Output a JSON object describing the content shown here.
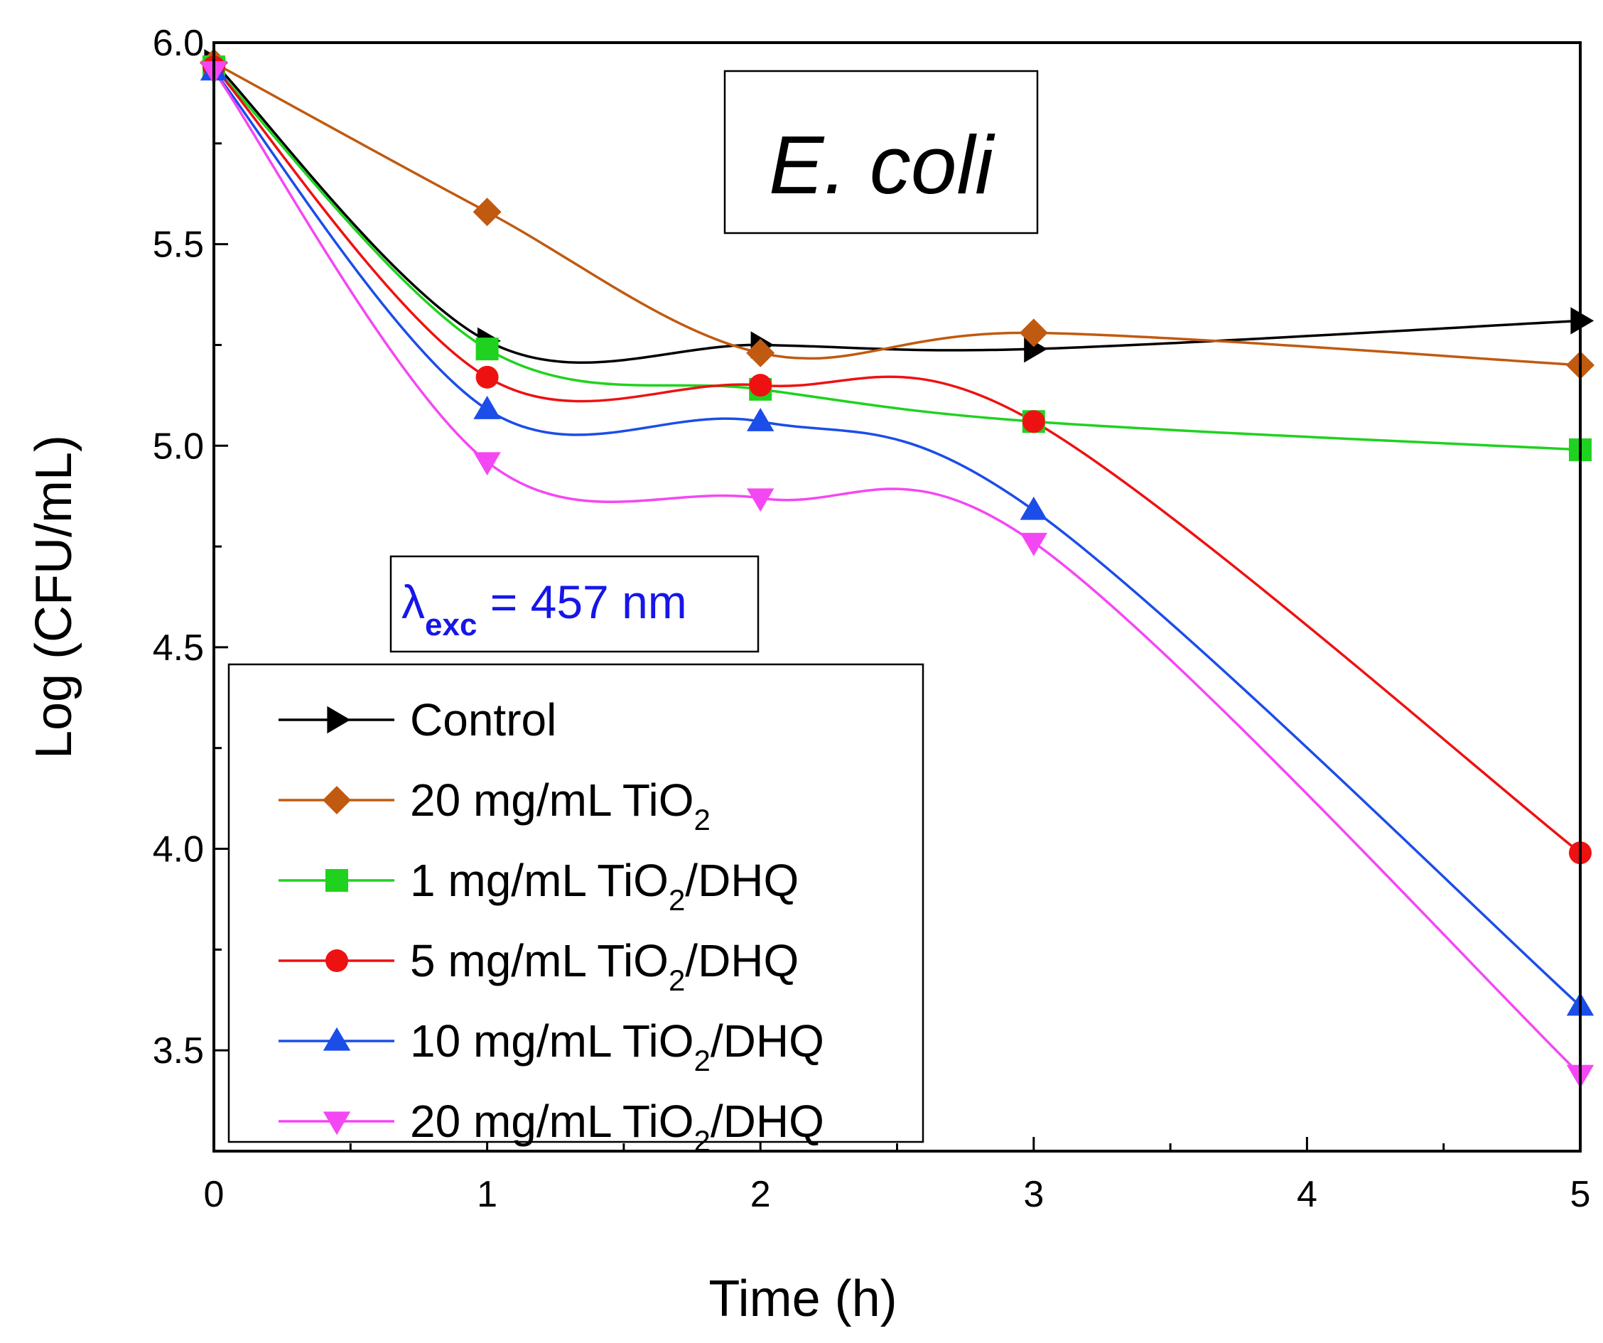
{
  "chart_data": {
    "type": "line",
    "title": "E. coli",
    "annotation": {
      "symbol": "λ",
      "subscript": "exc",
      "text": " = 457 nm"
    },
    "xlabel": "Time (h)",
    "ylabel": "Log (CFU/mL)",
    "xlim": [
      0,
      5
    ],
    "ylim": [
      3.25,
      6.0
    ],
    "xticks": [
      0,
      1,
      2,
      3,
      4,
      5
    ],
    "yticks": [
      3.5,
      4.0,
      4.5,
      5.0,
      5.5,
      6.0
    ],
    "xtick_labels": [
      "0",
      "1",
      "2",
      "3",
      "4",
      "5"
    ],
    "ytick_labels": [
      "3.5",
      "4.0",
      "4.5",
      "5.0",
      "5.5",
      "6.0"
    ],
    "legend_position": "bottom-left",
    "x": [
      0,
      1,
      2,
      3,
      5
    ],
    "series": [
      {
        "name": "Control",
        "label_main": "Control",
        "label_sub": "",
        "label_after": "",
        "color": "#000000",
        "marker": "triangle-right",
        "values": [
          5.95,
          5.26,
          5.25,
          5.24,
          5.31
        ]
      },
      {
        "name": "20 mg/mL TiO2",
        "label_main": "20 mg/mL TiO",
        "label_sub": "2",
        "label_after": "",
        "color": "#c05a10",
        "marker": "diamond",
        "values": [
          5.95,
          5.58,
          5.23,
          5.28,
          5.2
        ]
      },
      {
        "name": "1 mg/mL TiO2/DHQ",
        "label_main": "1 mg/mL TiO",
        "label_sub": "2",
        "label_after": "/DHQ",
        "color": "#1fd21f",
        "marker": "square",
        "values": [
          5.94,
          5.24,
          5.14,
          5.06,
          4.99
        ]
      },
      {
        "name": "5 mg/mL TiO2/DHQ",
        "label_main": "5 mg/mL TiO",
        "label_sub": "2",
        "label_after": "/DHQ",
        "color": "#ee1111",
        "marker": "circle",
        "values": [
          5.94,
          5.17,
          5.15,
          5.06,
          3.99
        ]
      },
      {
        "name": "10 mg/mL TiO2/DHQ",
        "label_main": "10 mg/mL TiO",
        "label_sub": "2",
        "label_after": "/DHQ",
        "color": "#1b4de8",
        "marker": "triangle-up",
        "values": [
          5.93,
          5.09,
          5.06,
          4.84,
          3.61
        ]
      },
      {
        "name": "20 mg/mL TiO2/DHQ",
        "label_main": "20 mg/mL TiO",
        "label_sub": "2",
        "label_after": "/DHQ",
        "color": "#f447f4",
        "marker": "triangle-down",
        "values": [
          5.93,
          4.96,
          4.87,
          4.76,
          3.44
        ]
      }
    ]
  }
}
